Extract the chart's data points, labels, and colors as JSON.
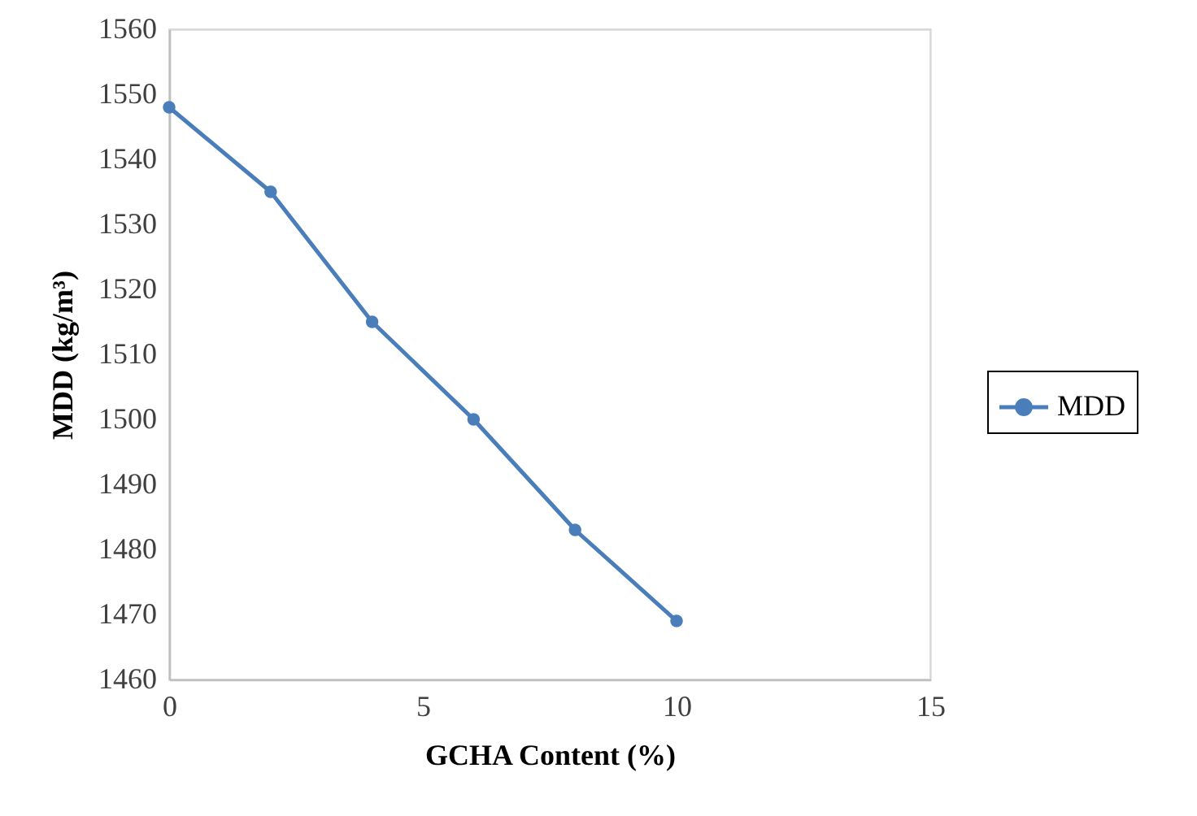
{
  "chart_data": {
    "type": "line",
    "xlabel": "GCHA Content (%)",
    "ylabel": "MDD (kg/m³)",
    "x": [
      0,
      2,
      4,
      6,
      8,
      10
    ],
    "series": [
      {
        "name": "MDD",
        "color": "#4a7ebb",
        "values": [
          1548,
          1535,
          1515,
          1500,
          1483,
          1469
        ]
      }
    ],
    "xlim": [
      0,
      15
    ],
    "xticks": [
      0,
      5,
      10,
      15
    ],
    "ylim": [
      1460,
      1560
    ],
    "yticks": [
      1460,
      1470,
      1480,
      1490,
      1500,
      1510,
      1520,
      1530,
      1540,
      1550,
      1560
    ],
    "legend": "right",
    "marker": "circle",
    "line_style": "solid"
  }
}
